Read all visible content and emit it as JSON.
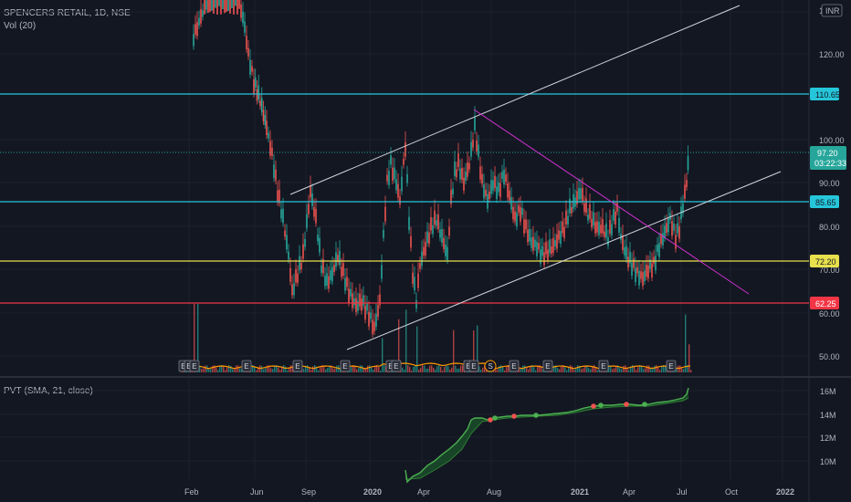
{
  "header": {
    "title": "SPENCERS RETAIL, 1D, NSE",
    "volume_label": "Vol (20)",
    "indicator_label": "PVT (SMA, 21, close)",
    "currency": "INR"
  },
  "colors": {
    "background": "#131722",
    "bull": "#26a69a",
    "bear": "#ef5350",
    "cyan_level": "#26c6da",
    "yellow_level": "#e8e04c",
    "red_level": "#f23645",
    "magenta_trend": "#d030d0",
    "channel": "#d1d4dc",
    "pvt": "#4caf50",
    "volume_ma": "#ff9800"
  },
  "price_axis": {
    "ticks": [
      "120.00",
      "100.00",
      "90.00",
      "80.00",
      "70.00",
      "60.00",
      "50.00"
    ],
    "top_tick": "1."
  },
  "pvt_axis": {
    "ticks": [
      "16M",
      "14M",
      "12M",
      "10M"
    ]
  },
  "time_axis": {
    "labels": [
      "Feb",
      "Jun",
      "Sep",
      "2020",
      "Apr",
      "Aug",
      "2021",
      "Apr",
      "Jul",
      "Oct",
      "2022"
    ]
  },
  "levels": [
    {
      "name": "resistance-1",
      "value": "110.65",
      "color": "#26c6da"
    },
    {
      "name": "resistance-2",
      "value": "85.65",
      "color": "#26c6da"
    },
    {
      "name": "support-1",
      "value": "72.20",
      "color": "#e8e04c"
    },
    {
      "name": "support-2",
      "value": "62.25",
      "color": "#f23645"
    }
  ],
  "last_price": {
    "value": "97.20",
    "countdown": "03:22:33"
  },
  "events": {
    "earnings_label": "E",
    "split_label": "S",
    "markers": [
      "E",
      "E",
      "E",
      "E",
      "E",
      "E",
      "E",
      "E",
      "E",
      "E",
      "S",
      "E",
      "E",
      "E",
      "E"
    ]
  }
}
